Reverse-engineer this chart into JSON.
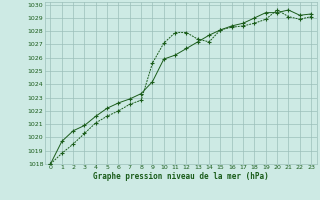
{
  "title": "Graphe pression niveau de la mer (hPa)",
  "background_color": "#cdeae4",
  "grid_color": "#9bbfba",
  "line_color": "#1a5c1a",
  "xlim": [
    -0.5,
    23.5
  ],
  "ylim": [
    1018,
    1030.2
  ],
  "xticks": [
    0,
    1,
    2,
    3,
    4,
    5,
    6,
    7,
    8,
    9,
    10,
    11,
    12,
    13,
    14,
    15,
    16,
    17,
    18,
    19,
    20,
    21,
    22,
    23
  ],
  "yticks": [
    1018,
    1019,
    1020,
    1021,
    1022,
    1023,
    1024,
    1025,
    1026,
    1027,
    1028,
    1029,
    1030
  ],
  "series1_x": [
    0,
    1,
    2,
    3,
    4,
    5,
    6,
    7,
    8,
    9,
    10,
    11,
    12,
    13,
    14,
    15,
    16,
    17,
    18,
    19,
    20,
    21,
    22,
    23
  ],
  "series1_y": [
    1018.0,
    1018.8,
    1019.5,
    1020.3,
    1021.1,
    1021.6,
    1022.0,
    1022.5,
    1022.8,
    1025.6,
    1027.1,
    1027.9,
    1027.9,
    1027.4,
    1027.2,
    1028.1,
    1028.3,
    1028.4,
    1028.6,
    1028.9,
    1029.6,
    1029.1,
    1028.9,
    1029.1
  ],
  "series2_x": [
    0,
    1,
    2,
    3,
    4,
    5,
    6,
    7,
    8,
    9,
    10,
    11,
    12,
    13,
    14,
    15,
    16,
    17,
    18,
    19,
    20,
    21,
    22,
    23
  ],
  "series2_y": [
    1018.0,
    1019.7,
    1020.5,
    1020.9,
    1021.6,
    1022.2,
    1022.6,
    1022.9,
    1023.3,
    1024.2,
    1025.9,
    1026.2,
    1026.7,
    1027.2,
    1027.7,
    1028.1,
    1028.4,
    1028.6,
    1029.0,
    1029.4,
    1029.4,
    1029.6,
    1029.2,
    1029.3
  ]
}
